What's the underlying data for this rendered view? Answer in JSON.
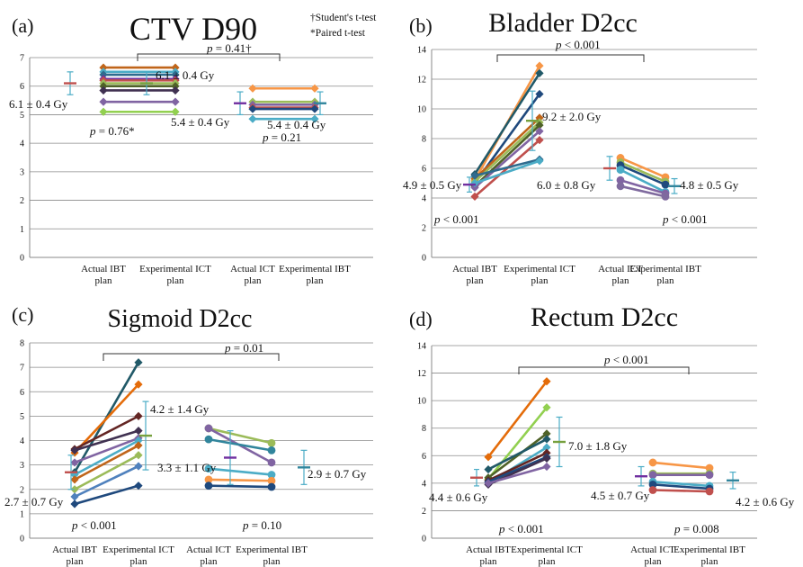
{
  "figure": {
    "footnotes": [
      "†Student's t-test",
      "*Paired t-test"
    ]
  },
  "chart_data": [
    {
      "type": "line",
      "panel_label": "(a)",
      "title": "CTV D90",
      "ylim": [
        0,
        7
      ],
      "yticks": [
        0,
        1,
        2,
        3,
        4,
        5,
        6,
        7
      ],
      "categories": [
        "Actual IBT plan",
        "Experimental ICT plan",
        "Actual ICT plan",
        "Experimental IBT plan"
      ],
      "series_groups": [
        {
          "from": "Actual IBT plan",
          "to": "Experimental ICT plan",
          "pairs": [
            {
              "from": 6.65,
              "to": 6.65,
              "color": "#C0651A"
            },
            {
              "from": 6.5,
              "to": 6.5,
              "color": "#4BACC6"
            },
            {
              "from": 6.4,
              "to": 6.4,
              "color": "#2F6B8E"
            },
            {
              "from": 6.25,
              "to": 6.25,
              "color": "#7030A0"
            },
            {
              "from": 6.2,
              "to": 6.2,
              "color": "#C0504D"
            },
            {
              "from": 6.1,
              "to": 6.1,
              "color": "#9BBB59"
            },
            {
              "from": 6.0,
              "to": 6.0,
              "color": "#4F6228"
            },
            {
              "from": 5.85,
              "to": 5.85,
              "color": "#403151"
            },
            {
              "from": 5.45,
              "to": 5.45,
              "color": "#8064A2"
            },
            {
              "from": 5.1,
              "to": 5.1,
              "color": "#92D050"
            }
          ]
        },
        {
          "from": "Actual ICT plan",
          "to": "Experimental IBT plan",
          "pairs": [
            {
              "from": 5.92,
              "to": 5.92,
              "color": "#F79646"
            },
            {
              "from": 5.45,
              "to": 5.45,
              "color": "#9BBB59"
            },
            {
              "from": 5.35,
              "to": 5.35,
              "color": "#8064A2"
            },
            {
              "from": 5.25,
              "to": 5.25,
              "color": "#C0504D"
            },
            {
              "from": 5.2,
              "to": 5.2,
              "color": "#1F497D"
            },
            {
              "from": 4.85,
              "to": 4.85,
              "color": "#4BACC6"
            }
          ]
        }
      ],
      "summaries": [
        {
          "category": "Actual IBT plan",
          "mean": 6.1,
          "sd": 0.4,
          "color": "#C0504D",
          "label": "6.1 ± 0.4 Gy"
        },
        {
          "category": "Experimental ICT plan",
          "mean": 6.1,
          "sd": 0.4,
          "color": "#76A03E",
          "label": "6.1 ± 0.4 Gy"
        },
        {
          "category": "Actual ICT plan",
          "mean": 5.4,
          "sd": 0.4,
          "color": "#7030A0",
          "label": "5.4 ± 0.4 Gy"
        },
        {
          "category": "Experimental IBT plan",
          "mean": 5.4,
          "sd": 0.4,
          "color": "#31859C",
          "label": "5.4 ± 0.4 Gy"
        }
      ],
      "pvalues": [
        {
          "text": "p = 0.41†",
          "type": "bracket"
        },
        {
          "text": "p = 0.76*",
          "type": "within"
        },
        {
          "text": "p = 0.21",
          "type": "within"
        }
      ]
    },
    {
      "type": "line",
      "panel_label": "(b)",
      "title": "Bladder D2cc",
      "ylim": [
        0,
        14
      ],
      "yticks": [
        0,
        2,
        4,
        6,
        8,
        10,
        12,
        14
      ],
      "categories": [
        "Actual IBT plan",
        "Experimental ICT plan",
        "Actual ICT plan",
        "Experimental IBT plan"
      ],
      "series_groups": [
        {
          "from": "Actual IBT plan",
          "to": "Experimental ICT plan",
          "pairs": [
            {
              "from": 5.2,
              "to": 12.9,
              "color": "#F79646"
            },
            {
              "from": 5.6,
              "to": 12.4,
              "color": "#215968"
            },
            {
              "from": 5.0,
              "to": 11.0,
              "color": "#1F497D"
            },
            {
              "from": 5.3,
              "to": 9.4,
              "color": "#C0651A"
            },
            {
              "from": 5.1,
              "to": 9.1,
              "color": "#9BBB59"
            },
            {
              "from": 4.8,
              "to": 8.9,
              "color": "#4F6228"
            },
            {
              "from": 4.7,
              "to": 8.5,
              "color": "#8064A2"
            },
            {
              "from": 4.1,
              "to": 7.9,
              "color": "#C0504D"
            },
            {
              "from": 5.5,
              "to": 6.6,
              "color": "#2F6B8E"
            },
            {
              "from": 5.0,
              "to": 6.5,
              "color": "#4BACC6"
            }
          ]
        },
        {
          "from": "Actual ICT plan",
          "to": "Experimental IBT plan",
          "pairs": [
            {
              "from": 6.7,
              "to": 5.4,
              "color": "#F79646"
            },
            {
              "from": 6.4,
              "to": 5.1,
              "color": "#9BBB59"
            },
            {
              "from": 6.2,
              "to": 4.9,
              "color": "#1F497D"
            },
            {
              "from": 5.9,
              "to": 4.4,
              "color": "#4BACC6"
            },
            {
              "from": 5.2,
              "to": 4.3,
              "color": "#8064A2"
            },
            {
              "from": 4.8,
              "to": 4.1,
              "color": "#7F6A9E"
            }
          ]
        }
      ],
      "summaries": [
        {
          "category": "Actual IBT plan",
          "mean": 4.9,
          "sd": 0.5,
          "color": "#7030A0",
          "label": "4.9 ± 0.5 Gy"
        },
        {
          "category": "Experimental ICT plan",
          "mean": 9.2,
          "sd": 2.0,
          "color": "#76A03E",
          "label": "9.2 ± 2.0 Gy"
        },
        {
          "category": "Actual ICT plan",
          "mean": 6.0,
          "sd": 0.8,
          "color": "#C0504D",
          "label": "6.0 ± 0.8 Gy"
        },
        {
          "category": "Experimental IBT plan",
          "mean": 4.8,
          "sd": 0.5,
          "color": "#31859C",
          "label": "4.8 ± 0.5 Gy"
        }
      ],
      "pvalues": [
        {
          "text": "p < 0.001",
          "type": "bracket"
        },
        {
          "text": "p < 0.001",
          "type": "within"
        },
        {
          "text": "p < 0.001",
          "type": "within"
        }
      ]
    },
    {
      "type": "line",
      "panel_label": "(c)",
      "title": "Sigmoid D2cc",
      "ylim": [
        0,
        8
      ],
      "yticks": [
        0,
        1,
        2,
        3,
        4,
        5,
        6,
        7,
        8
      ],
      "categories": [
        "Actual IBT plan",
        "Experimental ICT plan",
        "Actual ICT plan",
        "Experimental IBT plan"
      ],
      "series_groups": [
        {
          "from": "Actual IBT plan",
          "to": "Experimental ICT plan",
          "pairs": [
            {
              "from": 2.7,
              "to": 7.2,
              "color": "#215968"
            },
            {
              "from": 3.5,
              "to": 6.3,
              "color": "#E46C0A"
            },
            {
              "from": 3.65,
              "to": 5.0,
              "color": "#632523"
            },
            {
              "from": 3.6,
              "to": 4.4,
              "color": "#403151"
            },
            {
              "from": 3.1,
              "to": 4.1,
              "color": "#8064A2"
            },
            {
              "from": 2.6,
              "to": 4.0,
              "color": "#4BACC6"
            },
            {
              "from": 2.4,
              "to": 3.8,
              "color": "#C0651A"
            },
            {
              "from": 2.0,
              "to": 3.4,
              "color": "#9BBB59"
            },
            {
              "from": 1.7,
              "to": 2.95,
              "color": "#4F81BD"
            },
            {
              "from": 1.4,
              "to": 2.15,
              "color": "#1F497D"
            }
          ]
        },
        {
          "from": "Actual ICT plan",
          "to": "Experimental IBT plan",
          "pairs": [
            {
              "from": 4.5,
              "to": 3.9,
              "color": "#9BBB59"
            },
            {
              "from": 4.5,
              "to": 3.1,
              "color": "#8064A2"
            },
            {
              "from": 4.05,
              "to": 3.6,
              "color": "#31859C"
            },
            {
              "from": 2.85,
              "to": 2.6,
              "color": "#4BACC6"
            },
            {
              "from": 2.4,
              "to": 2.35,
              "color": "#F79646"
            },
            {
              "from": 2.15,
              "to": 2.1,
              "color": "#1F497D"
            }
          ]
        }
      ],
      "summaries": [
        {
          "category": "Actual IBT plan",
          "mean": 2.7,
          "sd": 0.7,
          "color": "#C0504D",
          "label": "2.7 ± 0.7 Gy"
        },
        {
          "category": "Experimental ICT plan",
          "mean": 4.2,
          "sd": 1.4,
          "color": "#76A03E",
          "label": "4.2 ± 1.4 Gy"
        },
        {
          "category": "Actual ICT plan",
          "mean": 3.3,
          "sd": 1.1,
          "color": "#7030A0",
          "label": "3.3 ± 1.1 Gy"
        },
        {
          "category": "Experimental IBT plan",
          "mean": 2.9,
          "sd": 0.7,
          "color": "#31859C",
          "label": "2.9 ± 0.7 Gy"
        }
      ],
      "pvalues": [
        {
          "text": "p = 0.01",
          "type": "bracket"
        },
        {
          "text": "p < 0.001",
          "type": "within"
        },
        {
          "text": "p = 0.10",
          "type": "within"
        }
      ]
    },
    {
      "type": "line",
      "panel_label": "(d)",
      "title": "Rectum D2cc",
      "ylim": [
        0,
        14
      ],
      "yticks": [
        0,
        2,
        4,
        6,
        8,
        10,
        12,
        14
      ],
      "categories": [
        "Actual IBT plan",
        "Experimental ICT plan",
        "Actual ICT plan",
        "Experimental IBT plan"
      ],
      "series_groups": [
        {
          "from": "Actual IBT plan",
          "to": "Experimental ICT plan",
          "pairs": [
            {
              "from": 5.9,
              "to": 11.4,
              "color": "#E46C0A"
            },
            {
              "from": 4.3,
              "to": 9.5,
              "color": "#92D050"
            },
            {
              "from": 4.4,
              "to": 7.6,
              "color": "#4F6228"
            },
            {
              "from": 5.0,
              "to": 7.2,
              "color": "#215968"
            },
            {
              "from": 4.0,
              "to": 6.6,
              "color": "#4BACC6"
            },
            {
              "from": 4.2,
              "to": 6.2,
              "color": "#632523"
            },
            {
              "from": 4.1,
              "to": 5.9,
              "color": "#1F497D"
            },
            {
              "from": 3.9,
              "to": 5.8,
              "color": "#403151"
            },
            {
              "from": 4.0,
              "to": 5.2,
              "color": "#8064A2"
            }
          ]
        },
        {
          "from": "Actual ICT plan",
          "to": "Experimental IBT plan",
          "pairs": [
            {
              "from": 5.5,
              "to": 5.1,
              "color": "#F79646"
            },
            {
              "from": 4.7,
              "to": 4.7,
              "color": "#9BBB59"
            },
            {
              "from": 4.6,
              "to": 4.6,
              "color": "#8064A2"
            },
            {
              "from": 4.1,
              "to": 3.8,
              "color": "#4BACC6"
            },
            {
              "from": 3.9,
              "to": 3.6,
              "color": "#1F497D"
            },
            {
              "from": 3.5,
              "to": 3.4,
              "color": "#C0504D"
            }
          ]
        }
      ],
      "summaries": [
        {
          "category": "Actual IBT plan",
          "mean": 4.4,
          "sd": 0.6,
          "color": "#C0504D",
          "label": "4.4 ± 0.6 Gy"
        },
        {
          "category": "Experimental ICT plan",
          "mean": 7.0,
          "sd": 1.8,
          "color": "#76A03E",
          "label": "7.0 ± 1.8 Gy"
        },
        {
          "category": "Actual ICT plan",
          "mean": 4.5,
          "sd": 0.7,
          "color": "#7030A0",
          "label": "4.5 ± 0.7 Gy"
        },
        {
          "category": "Experimental IBT plan",
          "mean": 4.2,
          "sd": 0.6,
          "color": "#31859C",
          "label": "4.2 ± 0.6 Gy"
        }
      ],
      "pvalues": [
        {
          "text": "p < 0.001",
          "type": "bracket"
        },
        {
          "text": "p < 0.001",
          "type": "within"
        },
        {
          "text": "p = 0.008",
          "type": "within"
        }
      ]
    }
  ]
}
